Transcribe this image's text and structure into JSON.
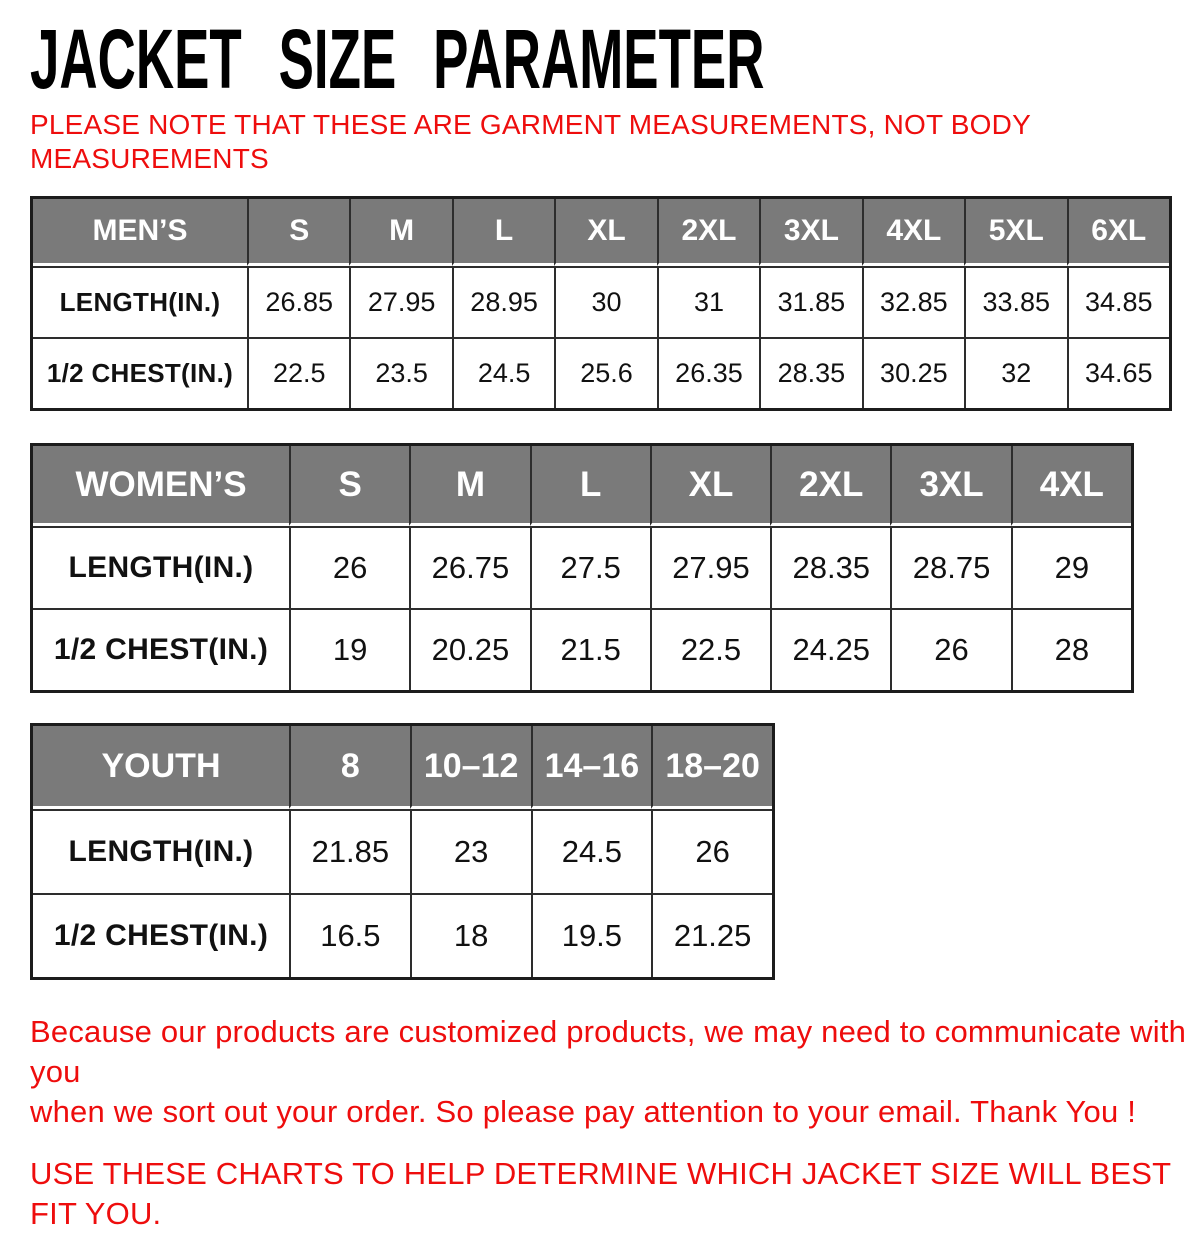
{
  "header": {
    "title": "JACKET SIZE PARAMETER",
    "note_line1": "PLEASE NOTE THAT THESE ARE GARMENT MEASUREMENTS, NOT BODY",
    "note_line2": "MEASUREMENTS"
  },
  "colors": {
    "title_color": "#000000",
    "note_red": "#ee0d0d",
    "table_header_bg": "#7a7a7a",
    "table_header_text": "#ffffff",
    "table_border": "#2d2d2d",
    "cell_bg": "#ffffff"
  },
  "tables": [
    {
      "name": "mens",
      "header": [
        "MEN’S",
        "S",
        "M",
        "L",
        "XL",
        "2XL",
        "3XL",
        "4XL",
        "5XL",
        "6XL"
      ],
      "rows": [
        [
          "LENGTH(IN.)",
          "26.85",
          "27.95",
          "28.95",
          "30",
          "31",
          "31.85",
          "32.85",
          "33.85",
          "34.85"
        ],
        [
          "1/2 CHEST(IN.)",
          "22.5",
          "23.5",
          "24.5",
          "25.6",
          "26.35",
          "28.35",
          "30.25",
          "32",
          "34.65"
        ]
      ]
    },
    {
      "name": "womens",
      "header": [
        "WOMEN’S",
        "S",
        "M",
        "L",
        "XL",
        "2XL",
        "3XL",
        "4XL"
      ],
      "rows": [
        [
          "LENGTH(IN.)",
          "26",
          "26.75",
          "27.5",
          "27.95",
          "28.35",
          "28.75",
          "29"
        ],
        [
          "1/2 CHEST(IN.)",
          "19",
          "20.25",
          "21.5",
          "22.5",
          "24.25",
          "26",
          "28"
        ]
      ]
    },
    {
      "name": "youth",
      "header": [
        "YOUTH",
        "8",
        "10–12",
        "14–16",
        "18–20"
      ],
      "rows": [
        [
          "LENGTH(IN.)",
          "21.85",
          "23",
          "24.5",
          "26"
        ],
        [
          "1/2 CHEST(IN.)",
          "16.5",
          "18",
          "19.5",
          "21.25"
        ]
      ]
    }
  ],
  "footer": {
    "para_line1": "Because our products are customized products, we may need to communicate with you",
    "para_line2": "when we sort out your order. So please pay attention to your email. Thank You !",
    "charts_tip": "USE THESE CHARTS TO HELP DETERMINE WHICH JACKET SIZE WILL BEST FIT YOU."
  }
}
